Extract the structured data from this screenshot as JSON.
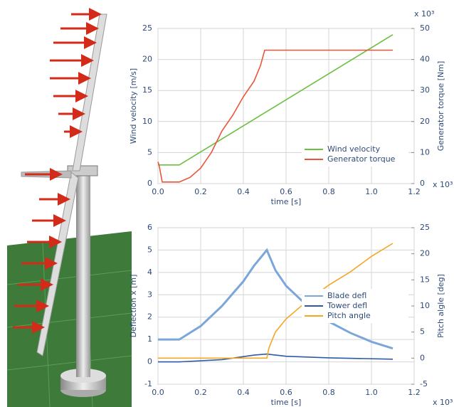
{
  "chart_data": [
    {
      "type": "line",
      "x_label": "time [s]",
      "y_label": "Wind velocity [m/s]",
      "y2_label": "Generator torque [Nm]",
      "x_multiplier": "x 10³",
      "y2_multiplier": "x 10³",
      "xlim": [
        0,
        1.2
      ],
      "xticks": [
        {
          "value": 0,
          "label": "0.0"
        },
        0.2,
        0.4,
        0.6,
        0.8,
        {
          "value": 1,
          "label": "1.0"
        },
        1.2
      ],
      "ylim": [
        0,
        25
      ],
      "yticks": [
        0,
        5,
        10,
        15,
        20,
        25
      ],
      "y2lim": [
        0,
        50
      ],
      "y2ticks": [
        0,
        10,
        20,
        30,
        40,
        50
      ],
      "grid": true,
      "legend": "lower right",
      "series": [
        {
          "name": "Wind velocity",
          "color": "#6cbf3f",
          "x": [
            0,
            0.1,
            1.1
          ],
          "values": [
            3,
            3,
            24
          ]
        },
        {
          "name": "Generator torque",
          "color": "#e8553a",
          "axis": "y2",
          "x": [
            0,
            0.005,
            0.02,
            0.1,
            0.15,
            0.2,
            0.25,
            0.3,
            0.35,
            0.4,
            0.45,
            0.48,
            0.5,
            0.52,
            1.1
          ],
          "values": [
            7,
            6,
            0.5,
            0.5,
            2,
            5,
            10,
            17,
            22,
            28,
            33,
            38,
            43,
            43,
            43
          ]
        }
      ]
    },
    {
      "type": "line",
      "x_label": "time [s]",
      "y_label": "Deflection x [m]",
      "y2_label": "Pitch algle [deg]",
      "x_multiplier": "x 10³",
      "xlim": [
        0,
        1.2
      ],
      "xticks": [
        {
          "value": 0,
          "label": "0.0"
        },
        0.2,
        0.4,
        0.6,
        0.8,
        {
          "value": 1,
          "label": "1.0"
        },
        1.2
      ],
      "ylim": [
        -1,
        6
      ],
      "yticks": [
        -1,
        0,
        1,
        2,
        3,
        4,
        5,
        6
      ],
      "y2lim": [
        -5,
        25
      ],
      "y2ticks": [
        -5,
        0,
        5,
        10,
        15,
        20,
        25
      ],
      "grid": true,
      "legend": "center right",
      "series": [
        {
          "name": "Blade defl",
          "color": "#7aa6d9",
          "x": [
            0,
            0.1,
            0.2,
            0.3,
            0.4,
            0.45,
            0.51,
            0.55,
            0.6,
            0.7,
            0.8,
            0.9,
            1.0,
            1.1
          ],
          "values": [
            1,
            1,
            1.6,
            2.5,
            3.6,
            4.3,
            5,
            4.1,
            3.4,
            2.5,
            1.8,
            1.3,
            0.9,
            0.6
          ]
        },
        {
          "name": "Tower defl",
          "color": "#2c5aa8",
          "x": [
            0,
            0.1,
            0.3,
            0.45,
            0.51,
            0.6,
            0.8,
            1.1
          ],
          "values": [
            0,
            0,
            0.1,
            0.3,
            0.35,
            0.25,
            0.18,
            0.12
          ]
        },
        {
          "name": "Pitch angle",
          "color": "#f5a623",
          "axis": "y2",
          "x": [
            0,
            0.51,
            0.52,
            0.55,
            0.6,
            0.7,
            0.8,
            0.9,
            1.0,
            1.1
          ],
          "values": [
            0,
            0,
            2,
            5,
            7.5,
            11,
            14,
            16.5,
            19.5,
            22
          ]
        }
      ]
    }
  ]
}
